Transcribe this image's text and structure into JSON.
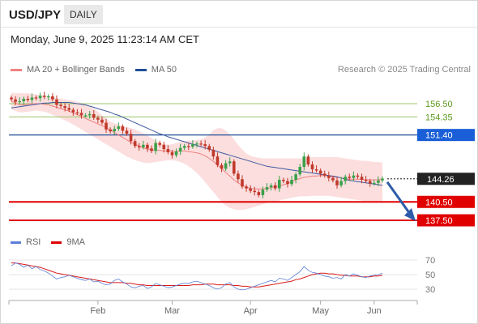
{
  "header": {
    "symbol": "USD/JPY",
    "timeframe": "DAILY",
    "datetime": "Monday, June 9, 2025 11:23:14 AM CET"
  },
  "legend": {
    "items": [
      {
        "label": "MA 20 + Bollinger Bands",
        "color": "#f08080"
      },
      {
        "label": "MA 50",
        "color": "#1f4e96"
      }
    ],
    "credit": "Research © 2025 Trading Central"
  },
  "rsi_legend": {
    "items": [
      {
        "label": "RSI",
        "color": "#5b7fd6"
      },
      {
        "label": "9MA",
        "color": "#e00000"
      }
    ]
  },
  "colors": {
    "up_candle": "#3aa04a",
    "down_candle": "#c0392b",
    "resistance_line": "#9cc46a",
    "resistance_text": "#5f9a1e",
    "pivot_line": "#1f4e96",
    "pivot_label_bg": "#1a5fd8",
    "support_line": "#e00000",
    "current_label_bg": "#222222",
    "bb_fill": "#fbd3d3",
    "ma20": "#f08080",
    "ma50": "#3e5aa0",
    "forecast_arrow": "#2e5caa"
  },
  "chart_data": [
    {
      "type": "candlestick",
      "title": "USD/JPY",
      "y_axis_side": "right",
      "ylim": [
        136.7,
        158.7
      ],
      "x_ticks": [
        "Feb",
        "Mar",
        "Apr",
        "May",
        "Jun"
      ],
      "levels": [
        {
          "value": 156.5,
          "label": "156.50",
          "kind": "resistance"
        },
        {
          "value": 154.35,
          "label": "154.35",
          "kind": "resistance"
        },
        {
          "value": 151.4,
          "label": "151.40",
          "kind": "pivot"
        },
        {
          "value": 144.26,
          "label": "144.26",
          "kind": "current"
        },
        {
          "value": 140.5,
          "label": "140.50",
          "kind": "support"
        },
        {
          "value": 137.5,
          "label": "137.50",
          "kind": "support"
        }
      ],
      "forecast": {
        "from": 144.26,
        "to": 137.5,
        "direction": "down"
      },
      "series": [
        {
          "name": "MA 50",
          "values": [
            155.8,
            155.9,
            156.0,
            156.1,
            156.2,
            156.3,
            156.4,
            156.5,
            156.6,
            156.6,
            156.7,
            156.7,
            156.7,
            156.7,
            156.7,
            156.6,
            156.5,
            156.4,
            156.3,
            156.1,
            155.9,
            155.7,
            155.5,
            155.3,
            155.1,
            154.8,
            154.6,
            154.3,
            154.0,
            153.7,
            153.4,
            153.1,
            152.8,
            152.5,
            152.2,
            151.9,
            151.6,
            151.4,
            151.1,
            150.9,
            150.7,
            150.5,
            150.3,
            150.1,
            149.9,
            149.7,
            149.5,
            149.3,
            149.1,
            148.9,
            148.7,
            148.5,
            148.3,
            148.1,
            147.9,
            147.7,
            147.5,
            147.3,
            147.1,
            146.9,
            146.7,
            146.5,
            146.3,
            146.2,
            146.1,
            146.0,
            145.9,
            145.8,
            145.7,
            145.6,
            145.5,
            145.4,
            145.3,
            145.2,
            145.1,
            145.0,
            144.9,
            144.8,
            144.7,
            144.6,
            144.4,
            144.2,
            144.0,
            143.9,
            143.8,
            143.7,
            143.6,
            143.5,
            143.4,
            143.3,
            143.2
          ]
        },
        {
          "name": "MA 20",
          "values": [
            156.9,
            156.6,
            156.3,
            156.3,
            156.4,
            156.5,
            156.5,
            156.5,
            156.4,
            156.3,
            156.1,
            155.9,
            155.7,
            155.5,
            155.3,
            155.0,
            154.7,
            154.4,
            154.1,
            153.8,
            153.5,
            153.2,
            152.9,
            152.6,
            152.2,
            151.8,
            151.4,
            151.0,
            150.6,
            150.2,
            149.9,
            149.6,
            149.3,
            149.1,
            149.0,
            148.9,
            148.9,
            148.8,
            148.8,
            148.8,
            148.7,
            148.8,
            148.8,
            148.7,
            148.6,
            148.5,
            148.3,
            148.0,
            147.6,
            147.1,
            146.5,
            145.9,
            145.3,
            144.7,
            144.1,
            143.6,
            143.2,
            142.9,
            142.7,
            142.6,
            142.6,
            142.6,
            142.7,
            142.8,
            143.0,
            143.1,
            143.3,
            143.5,
            143.8,
            144.1,
            144.3,
            144.5,
            144.6,
            144.7,
            144.7,
            144.8,
            144.8,
            144.7,
            144.6,
            144.5,
            144.4,
            144.3,
            144.2,
            144.2,
            144.2,
            144.2,
            144.1,
            144.1,
            144.1,
            144.1,
            144.2
          ]
        },
        {
          "name": "BB Upper",
          "values": [
            158.3,
            158.2,
            158.2,
            158.2,
            158.2,
            158.1,
            158.0,
            157.9,
            157.8,
            157.7,
            157.6,
            157.4,
            157.3,
            157.2,
            157.1,
            157.0,
            156.8,
            156.6,
            156.4,
            156.1,
            155.7,
            155.2,
            154.6,
            154.0,
            153.6,
            153.3,
            153.1,
            152.9,
            152.7,
            152.5,
            152.3,
            152.0,
            151.7,
            151.3,
            150.9,
            150.5,
            150.1,
            149.9,
            149.8,
            149.9,
            150.1,
            150.3,
            150.4,
            150.5,
            150.5,
            150.6,
            150.7,
            151.0,
            151.5,
            152.2,
            152.5,
            152.5,
            152.1,
            151.5,
            150.7,
            149.8,
            149.0,
            148.4,
            148.0,
            147.8,
            147.7,
            147.6,
            147.6,
            147.6,
            147.6,
            147.6,
            147.6,
            147.6,
            147.6,
            147.6,
            147.6,
            147.6,
            147.7,
            147.8,
            147.8,
            147.8,
            147.8,
            147.8,
            147.8,
            147.8,
            147.7,
            147.6,
            147.5,
            147.4,
            147.3,
            147.2,
            147.2,
            147.1,
            147.0,
            147.0,
            146.9
          ]
        },
        {
          "name": "BB Lower",
          "values": [
            155.6,
            155.3,
            155.1,
            155.1,
            155.2,
            155.3,
            155.4,
            155.3,
            155.2,
            155.0,
            154.7,
            154.4,
            154.1,
            153.8,
            153.5,
            153.1,
            152.7,
            152.3,
            151.9,
            151.5,
            151.1,
            150.7,
            150.3,
            149.9,
            149.5,
            149.1,
            148.7,
            148.3,
            147.9,
            147.6,
            147.3,
            147.1,
            146.9,
            146.8,
            146.9,
            147.0,
            147.1,
            147.2,
            147.3,
            147.3,
            147.2,
            147.0,
            146.7,
            146.3,
            145.8,
            145.2,
            144.5,
            143.7,
            142.9,
            142.1,
            141.3,
            140.5,
            139.9,
            139.5,
            139.3,
            139.2,
            139.2,
            139.3,
            139.5,
            139.7,
            139.9,
            140.1,
            140.3,
            140.5,
            140.6,
            140.7,
            140.9,
            141.0,
            141.2,
            141.3,
            141.4,
            141.4,
            141.4,
            141.5,
            141.5,
            141.5,
            141.5,
            141.5,
            141.4,
            141.3,
            141.2,
            141.1,
            141.0,
            140.9,
            140.8,
            140.7,
            140.6,
            140.6,
            140.6,
            140.5,
            140.5
          ]
        },
        {
          "name": "Close",
          "values": [
            157.2,
            156.8,
            156.9,
            157.3,
            157.1,
            157.5,
            157.4,
            157.8,
            157.6,
            157.7,
            157.2,
            156.3,
            156.1,
            155.8,
            155.5,
            155.1,
            155.0,
            154.6,
            154.6,
            154.8,
            154.2,
            153.9,
            153.4,
            152.3,
            152.0,
            152.4,
            152.8,
            152.1,
            151.6,
            150.4,
            149.6,
            149.4,
            149.8,
            149.2,
            148.8,
            150.1,
            149.8,
            149.1,
            148.6,
            148.1,
            148.7,
            149.3,
            149.6,
            149.5,
            149.9,
            150.0,
            149.9,
            149.6,
            149.0,
            147.9,
            146.5,
            145.9,
            146.8,
            147.1,
            145.1,
            144.2,
            143.0,
            142.7,
            142.3,
            142.1,
            141.6,
            142.5,
            142.9,
            143.2,
            142.7,
            144.1,
            143.9,
            143.4,
            144.1,
            145.0,
            146.2,
            147.9,
            146.6,
            145.8,
            145.6,
            145.1,
            144.8,
            144.4,
            144.0,
            143.2,
            143.9,
            144.6,
            144.4,
            144.8,
            144.6,
            144.1,
            143.9,
            143.5,
            143.6,
            144.0,
            144.3
          ]
        }
      ]
    },
    {
      "type": "line",
      "title": "RSI",
      "y_ticks": [
        70,
        50,
        30
      ],
      "ylim": [
        20,
        80
      ],
      "series": [
        {
          "name": "RSI",
          "values": [
            62,
            66,
            64,
            60,
            63,
            58,
            61,
            57,
            55,
            52,
            48,
            44,
            46,
            47,
            49,
            47,
            45,
            43,
            42,
            44,
            40,
            41,
            38,
            36,
            37,
            42,
            44,
            40,
            37,
            33,
            32,
            34,
            35,
            31,
            33,
            38,
            36,
            34,
            32,
            33,
            35,
            37,
            38,
            38,
            40,
            41,
            39,
            37,
            35,
            32,
            30,
            32,
            37,
            39,
            33,
            30,
            29,
            30,
            32,
            34,
            36,
            38,
            40,
            42,
            40,
            45,
            44,
            42,
            46,
            50,
            54,
            61,
            56,
            53,
            52,
            50,
            48,
            47,
            45,
            46,
            44,
            50,
            48,
            51,
            49,
            47,
            46,
            48,
            49,
            50,
            52
          ]
        },
        {
          "name": "9MA",
          "values": [
            66,
            66,
            65,
            64,
            63,
            62,
            61,
            60,
            58,
            56,
            54,
            52,
            51,
            50,
            49,
            48,
            47,
            46,
            45,
            44,
            43,
            42,
            41,
            40,
            39,
            39,
            39,
            39,
            38,
            38,
            37,
            36,
            36,
            35,
            35,
            35,
            35,
            35,
            35,
            35,
            35,
            35,
            35,
            35,
            36,
            36,
            36,
            37,
            37,
            37,
            36,
            36,
            36,
            36,
            35,
            35,
            34,
            34,
            33,
            33,
            33,
            34,
            35,
            36,
            37,
            38,
            39,
            40,
            41,
            43,
            44,
            46,
            48,
            50,
            51,
            52,
            52,
            51,
            51,
            50,
            49,
            49,
            48,
            48,
            48,
            47,
            47,
            47,
            48,
            48,
            49
          ]
        }
      ]
    }
  ]
}
